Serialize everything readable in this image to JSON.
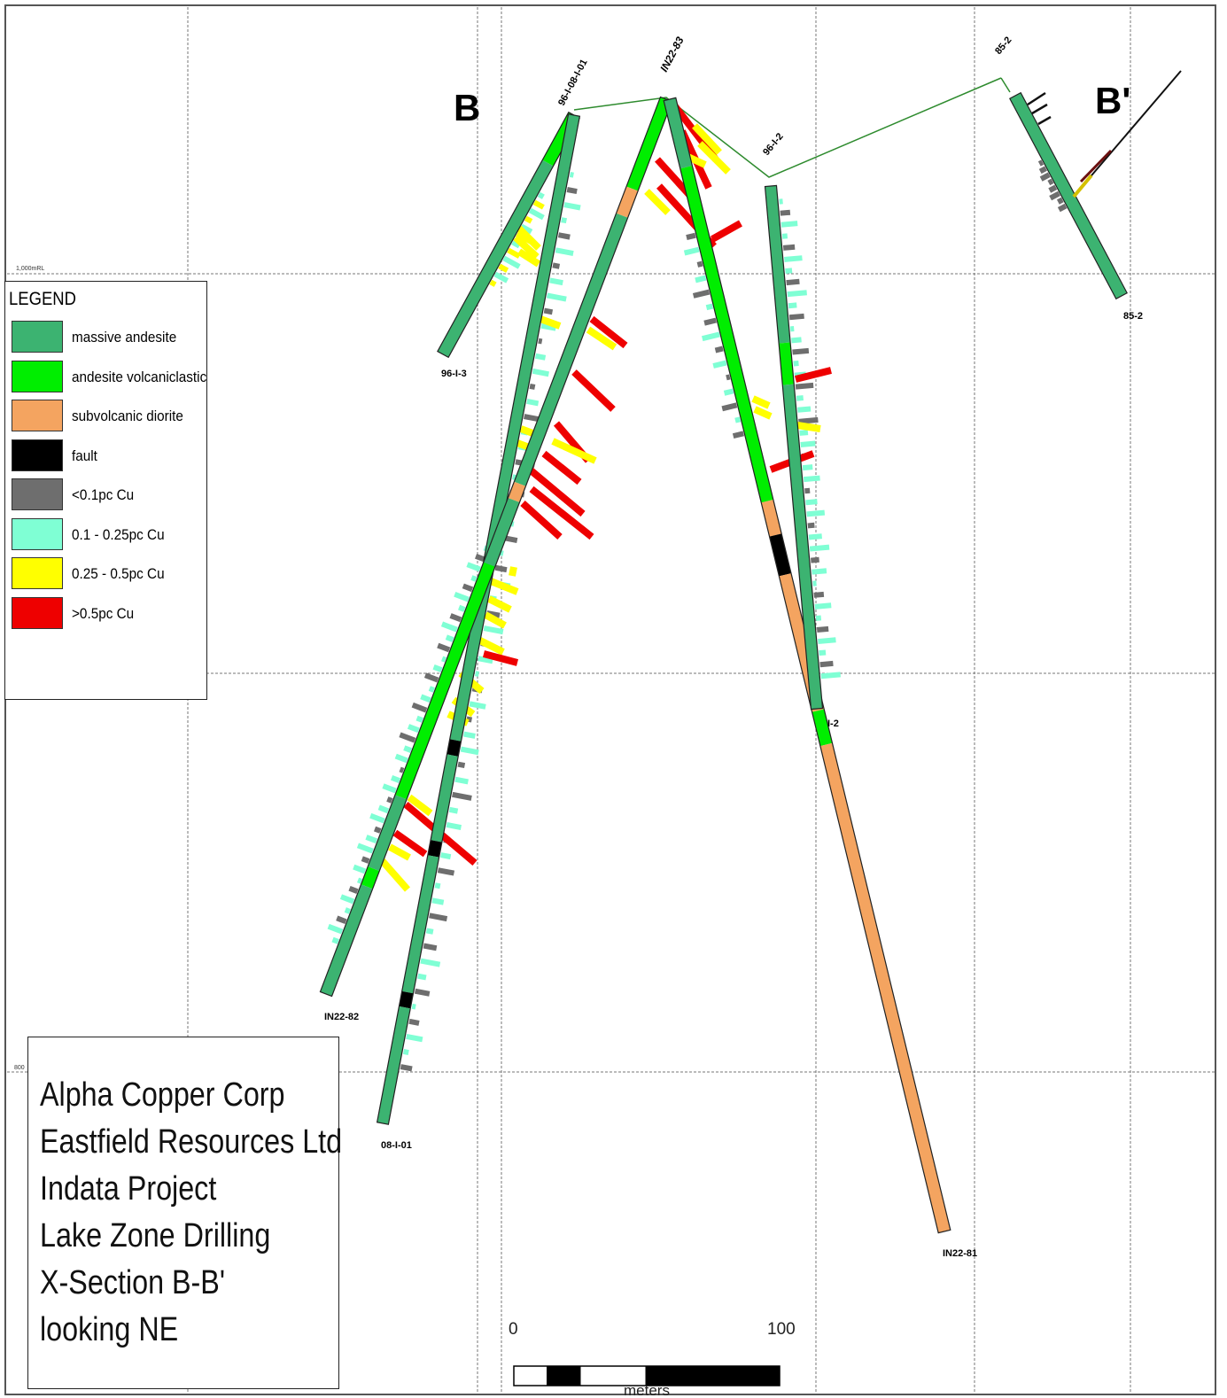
{
  "section_labels": {
    "left": "B",
    "right": "B'"
  },
  "grid_labels": {
    "elev_upper": "1,000mRL",
    "elev_lower": "800"
  },
  "holes": {
    "h96_I_01": "96-I-01",
    "h08_I_01_collar": "96-I-08-I-01",
    "h08_I_01": "08-I-01",
    "hIN22_83": "IN22-83",
    "h96_I_2": "96-I-2",
    "h96_I_2_end": "I-2",
    "h85_2": "85-2",
    "h85_2_end": "85-2",
    "h96_I_3": "96-I-3",
    "hIN22_82": "IN22-82",
    "hIN22_81": "IN22-81"
  },
  "legend": {
    "title": "LEGEND",
    "items": [
      {
        "label": "massive andesite",
        "color": "#3cb371"
      },
      {
        "label": "andesite volcaniclastic",
        "color": "#00ee00"
      },
      {
        "label": "subvolcanic diorite",
        "color": "#f4a460"
      },
      {
        "label": "fault",
        "color": "#000000"
      },
      {
        "label": "<0.1pc Cu",
        "color": "#6e6e6e"
      },
      {
        "label": "0.1 - 0.25pc Cu",
        "color": "#7fffd4"
      },
      {
        "label": "0.25 - 0.5pc Cu",
        "color": "#ffff00"
      },
      {
        "label": ">0.5pc Cu",
        "color": "#ee0000"
      }
    ]
  },
  "title_block": {
    "lines": [
      "Alpha Copper Corp",
      "Eastfield Resources Ltd",
      "Indata Project",
      "Lake Zone Drilling",
      "X-Section B-B'",
      "looking NE"
    ]
  },
  "scale_bar": {
    "start": "0",
    "end": "100",
    "unit": "meters"
  }
}
